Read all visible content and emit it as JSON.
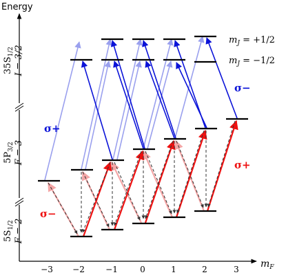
{
  "axis": {
    "y_label": "Energy",
    "x_label_symbol": "m",
    "x_label_sub": "F",
    "ticks": [
      "−3",
      "−2",
      "−1",
      "0",
      "1",
      "2",
      "3"
    ]
  },
  "states": {
    "rydberg": {
      "line1": "35S",
      "line1_sub": "1/2",
      "line2": "I = 3/2"
    },
    "intermediate": {
      "line1": "5P",
      "line1_sub": "3/2",
      "line2": "F = 3"
    },
    "ground": {
      "line1": "5S",
      "line1_sub": "1/2",
      "line2": "F = 2"
    }
  },
  "legend": {
    "upper": "m_J = +1/2",
    "lower": "m_J = −1/2",
    "upper_parts": [
      "m",
      "J",
      " = +1/2"
    ],
    "lower_parts": [
      "m",
      "J",
      " = −1/2"
    ]
  },
  "polarization_labels": {
    "sigma_plus_blue": "σ+",
    "sigma_minus_blue": "σ−",
    "sigma_plus_red": "σ+",
    "sigma_minus_red": "σ−"
  },
  "colors": {
    "blue": "#0b13d8",
    "blue_light": "#9aa0ee",
    "red": "#ee1111",
    "red_light": "#f4a6a6",
    "level": "#000000",
    "decay": "#333333"
  },
  "levels": {
    "ground_mF": [
      -2,
      -1,
      0,
      1,
      2
    ],
    "intermediate_mF": [
      -3,
      -2,
      -1,
      0,
      1,
      2,
      3
    ],
    "rydberg_mF": [
      -2,
      -1,
      0,
      1,
      2
    ]
  }
}
